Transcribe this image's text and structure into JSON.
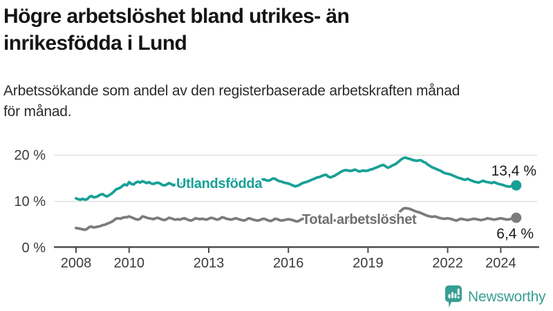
{
  "header": {
    "title_line1": "Högre arbetslöshet bland utrikes- än",
    "title_line2": "inrikesfödda i Lund",
    "subtitle_line1": "Arbetssökande som andel av den registerbaserade arbetskraften månad",
    "subtitle_line2": "för månad."
  },
  "footer": {
    "brand": "Newsworthy"
  },
  "colors": {
    "teal": "#18a096",
    "gray": "#7b7b7b",
    "gray_label": "#6f6f6f",
    "grid": "#dcdcdc",
    "axis": "#4d4d4d",
    "tick_text": "#3c3c3c",
    "value_text": "#1a1a1a",
    "logo_teal": "#379e93"
  },
  "chart_data": {
    "type": "line",
    "title": "Högre arbetslöshet bland utrikes- än inrikesfödda i Lund",
    "subtitle": "Arbetssökande som andel av den registerbaserade arbetskraften månad för månad.",
    "x_start_year": 2008,
    "x_frequency": "monthly",
    "x_ticks": [
      {
        "year": 2008,
        "label": "2008"
      },
      {
        "year": 2010,
        "label": "2010"
      },
      {
        "year": 2013,
        "label": "2013"
      },
      {
        "year": 2016,
        "label": "2016"
      },
      {
        "year": 2019,
        "label": "2019"
      },
      {
        "year": 2022,
        "label": "2022"
      },
      {
        "year": 2024,
        "label": "2024"
      }
    ],
    "y_ticks": [
      {
        "value": 0,
        "label": "0 %"
      },
      {
        "value": 10,
        "label": "10 %"
      },
      {
        "value": 20,
        "label": "20 %"
      }
    ],
    "ylim": [
      0,
      21
    ],
    "grid": true,
    "legend_position": "inline-labels",
    "series": [
      {
        "name": "Utlandsfödda",
        "color_key": "teal",
        "end_label": "13,4 %",
        "values": [
          10.6,
          10.4,
          10.3,
          10.5,
          10.3,
          10.4,
          10.9,
          11.1,
          10.8,
          10.9,
          11.1,
          11.4,
          11.5,
          11.2,
          11.0,
          11.3,
          11.6,
          12.0,
          12.5,
          12.7,
          12.9,
          13.3,
          13.6,
          13.4,
          14.1,
          13.7,
          13.6,
          14.0,
          14.2,
          14.0,
          14.3,
          14.1,
          13.9,
          14.1,
          13.8,
          13.7,
          13.9,
          14.0,
          13.8,
          13.5,
          13.4,
          13.6,
          13.9,
          13.7,
          13.4,
          13.6,
          13.8,
          13.7,
          13.8,
          14.0,
          13.9,
          13.6,
          13.4,
          13.5,
          13.8,
          13.9,
          13.7,
          13.9,
          14.0,
          13.9,
          14.0,
          14.1,
          13.9,
          13.8,
          13.7,
          13.9,
          14.2,
          14.3,
          14.1,
          14.0,
          14.1,
          14.2,
          14.3,
          14.4,
          14.2,
          14.0,
          13.9,
          14.1,
          14.4,
          14.5,
          14.3,
          14.2,
          14.3,
          14.4,
          14.6,
          14.7,
          14.5,
          14.4,
          14.6,
          14.9,
          14.8,
          14.5,
          14.3,
          14.2,
          14.0,
          13.9,
          13.8,
          13.6,
          13.4,
          13.2,
          13.3,
          13.5,
          13.8,
          14.0,
          14.1,
          14.3,
          14.5,
          14.7,
          14.9,
          15.1,
          15.2,
          15.4,
          15.6,
          15.7,
          15.3,
          15.1,
          15.3,
          15.5,
          15.8,
          16.1,
          16.4,
          16.6,
          16.7,
          16.6,
          16.5,
          16.6,
          16.8,
          16.6,
          16.4,
          16.5,
          16.6,
          16.5,
          16.6,
          16.8,
          16.9,
          17.1,
          17.3,
          17.5,
          17.7,
          17.8,
          17.5,
          17.2,
          17.4,
          17.7,
          17.9,
          18.2,
          18.6,
          19.0,
          19.3,
          19.4,
          19.2,
          19.1,
          18.9,
          18.8,
          18.7,
          18.8,
          18.8,
          18.5,
          18.3,
          17.9,
          17.6,
          17.3,
          17.1,
          16.9,
          16.7,
          16.5,
          16.2,
          16.0,
          15.9,
          15.8,
          15.6,
          15.4,
          15.2,
          15.0,
          14.9,
          14.7,
          14.6,
          14.8,
          14.6,
          14.4,
          14.2,
          14.1,
          14.0,
          14.2,
          14.4,
          14.2,
          14.1,
          14.0,
          13.9,
          14.1,
          13.9,
          13.7,
          13.6,
          13.5,
          13.3,
          13.2,
          13.1,
          13.3,
          13.2,
          13.4
        ]
      },
      {
        "name": "Total arbetslöshet",
        "color_key": "gray",
        "end_label": "6,4 %",
        "values": [
          4.2,
          4.1,
          4.0,
          3.9,
          3.8,
          4.0,
          4.4,
          4.5,
          4.3,
          4.4,
          4.5,
          4.6,
          4.8,
          4.9,
          5.1,
          5.3,
          5.5,
          5.8,
          6.2,
          6.3,
          6.2,
          6.4,
          6.5,
          6.5,
          6.7,
          6.5,
          6.3,
          6.1,
          6.0,
          6.2,
          6.7,
          6.6,
          6.4,
          6.3,
          6.2,
          6.1,
          6.3,
          6.4,
          6.2,
          6.0,
          5.9,
          6.1,
          6.4,
          6.3,
          6.1,
          6.0,
          6.1,
          6.0,
          6.2,
          6.3,
          6.1,
          5.9,
          5.8,
          6.0,
          6.3,
          6.2,
          6.1,
          6.2,
          6.1,
          6.0,
          6.2,
          6.4,
          6.3,
          6.1,
          6.0,
          6.2,
          6.5,
          6.4,
          6.2,
          6.1,
          6.0,
          6.1,
          6.3,
          6.2,
          6.0,
          5.9,
          5.8,
          6.0,
          6.3,
          6.2,
          6.0,
          5.9,
          5.8,
          5.9,
          6.1,
          6.2,
          6.0,
          5.8,
          5.7,
          5.9,
          6.2,
          6.1,
          5.9,
          5.8,
          5.9,
          6.0,
          6.1,
          6.0,
          5.9,
          5.7,
          5.6,
          5.8,
          6.1,
          6.2,
          6.0,
          5.9,
          5.8,
          5.9,
          6.0,
          6.1,
          5.9,
          5.8,
          5.7,
          5.9,
          6.2,
          6.1,
          5.9,
          5.8,
          5.9,
          6.0,
          6.1,
          6.0,
          5.9,
          5.8,
          5.7,
          5.9,
          6.1,
          6.0,
          5.9,
          5.8,
          5.9,
          6.0,
          6.1,
          6.0,
          5.9,
          5.8,
          5.9,
          6.1,
          6.3,
          6.2,
          6.0,
          6.1,
          6.2,
          6.4,
          6.6,
          7.0,
          7.5,
          8.0,
          8.4,
          8.5,
          8.4,
          8.3,
          8.1,
          7.9,
          7.7,
          7.6,
          7.4,
          7.2,
          7.0,
          6.8,
          6.7,
          6.6,
          6.7,
          6.6,
          6.4,
          6.3,
          6.2,
          6.2,
          6.3,
          6.2,
          6.1,
          5.9,
          5.8,
          6.0,
          6.2,
          6.1,
          6.0,
          5.9,
          6.0,
          6.1,
          6.2,
          6.1,
          6.0,
          5.9,
          6.0,
          6.1,
          6.3,
          6.2,
          6.1,
          6.0,
          6.1,
          6.2,
          6.3,
          6.2,
          6.1,
          6.0,
          6.1,
          6.2,
          6.3,
          6.4
        ]
      }
    ]
  }
}
